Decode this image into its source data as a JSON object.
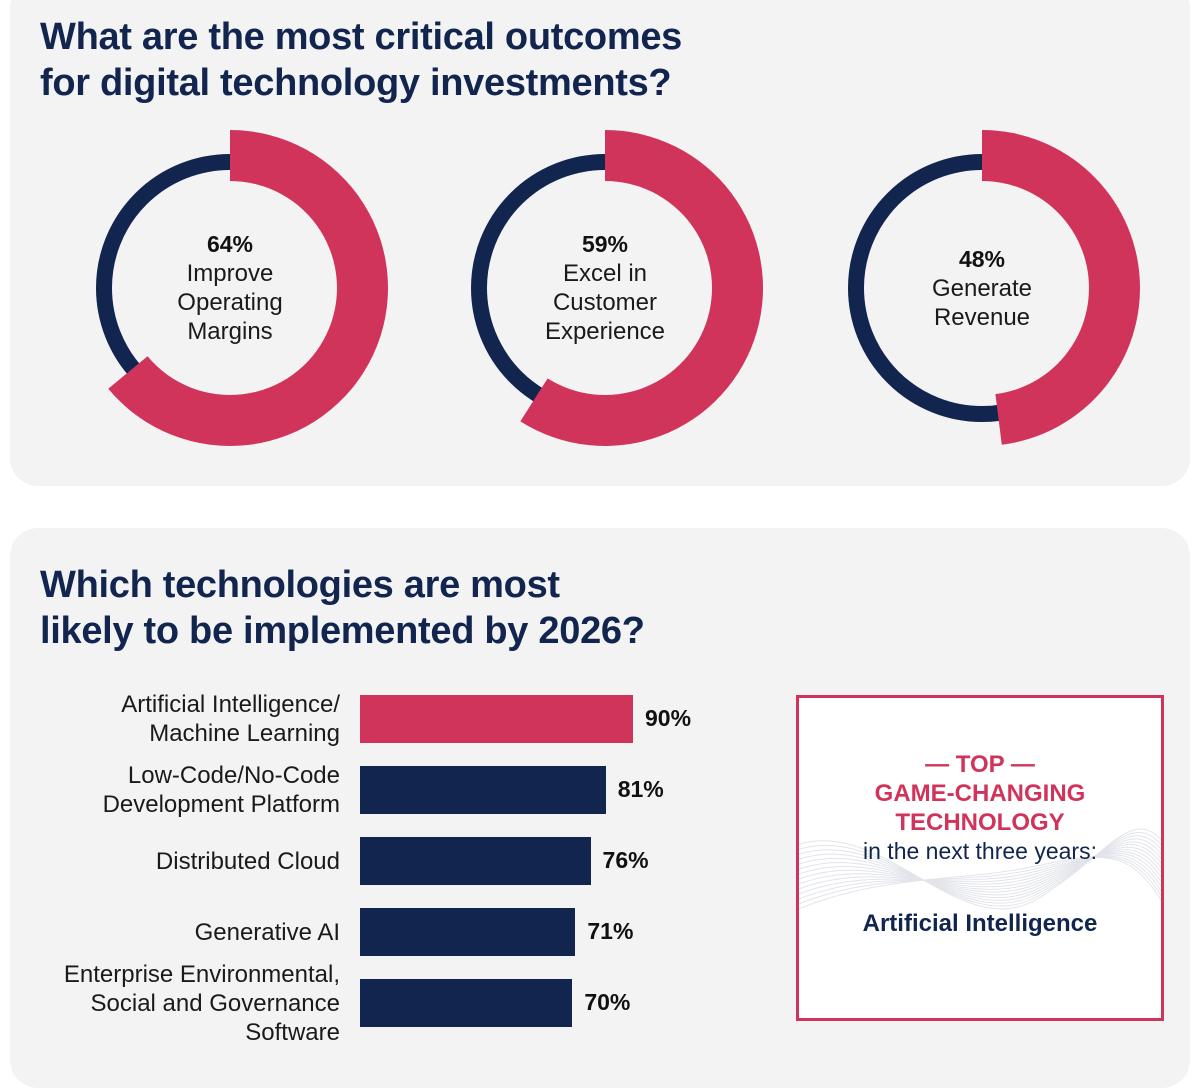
{
  "section1": {
    "title_lines": [
      "What are the most critical outcomes",
      "for digital technology investments?"
    ]
  },
  "section2": {
    "title_lines": [
      "Which technologies are most",
      "likely to be implemented by 2026?"
    ]
  },
  "colors": {
    "accent": "#d1345b",
    "navy": "#11254f",
    "panel": "#f3f3f3"
  },
  "chart_data": [
    {
      "type": "pie",
      "style": "donut",
      "items": [
        {
          "value": 64,
          "value_label": "64%",
          "label_lines": [
            "Improve",
            "Operating",
            "Margins"
          ]
        },
        {
          "value": 59,
          "value_label": "59%",
          "label_lines": [
            "Excel in",
            "Customer",
            "Experience"
          ]
        },
        {
          "value": 48,
          "value_label": "48%",
          "label_lines": [
            "Generate",
            "Revenue"
          ]
        }
      ]
    },
    {
      "type": "bar",
      "orientation": "horizontal",
      "categories": [
        [
          "Artificial Intelligence/",
          "Machine Learning"
        ],
        [
          "Low-Code/No-Code",
          "Development Platform"
        ],
        [
          "Distributed Cloud"
        ],
        [
          "Generative AI"
        ],
        [
          "Enterprise Environmental,",
          "Social and Governance",
          "Software"
        ]
      ],
      "values": [
        90,
        81,
        76,
        71,
        70
      ],
      "value_labels": [
        "90%",
        "81%",
        "76%",
        "71%",
        "70%"
      ],
      "highlight_index": 0
    }
  ],
  "callout": {
    "title_lines": [
      "— TOP —",
      "GAME-CHANGING",
      "TECHNOLOGY"
    ],
    "subtitle": "in the next three years:",
    "answer": "Artificial Intelligence"
  }
}
